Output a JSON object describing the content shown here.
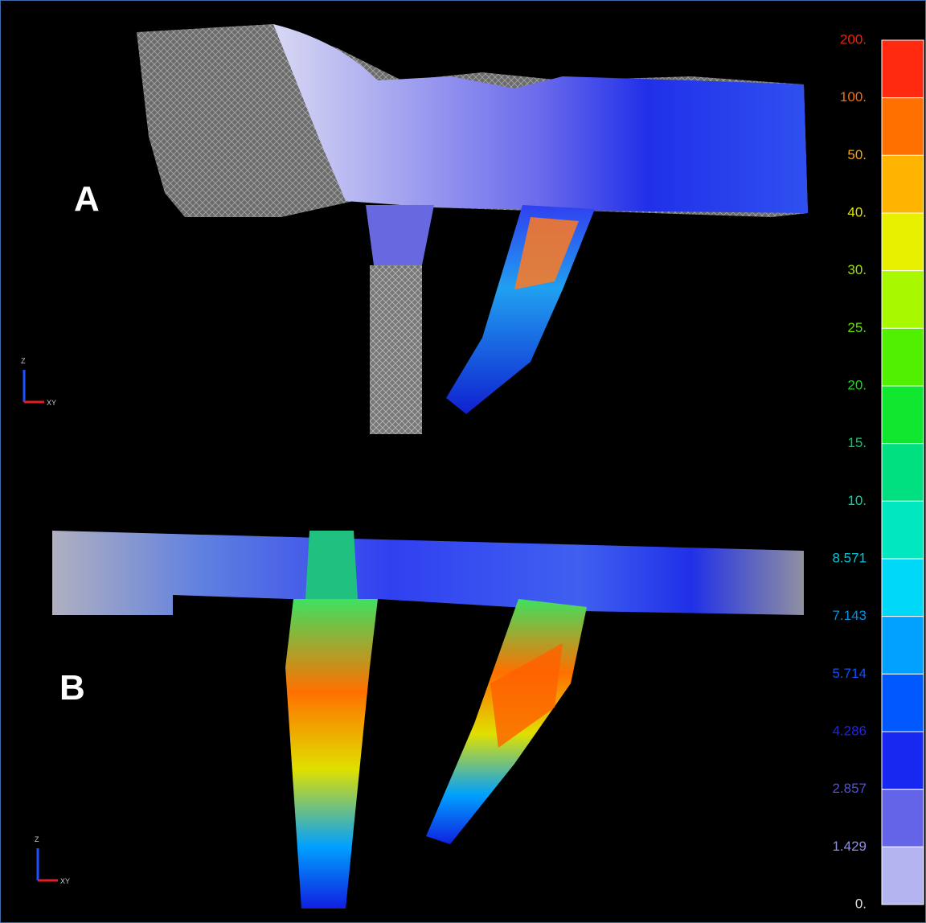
{
  "panels": [
    {
      "label": "A"
    },
    {
      "label": "B"
    }
  ],
  "axes": {
    "z": "Z",
    "xy": "XY"
  },
  "legend": {
    "labels": [
      "200.",
      "100.",
      "50.",
      "40.",
      "30.",
      "25.",
      "20.",
      "15.",
      "10.",
      "8.571",
      "7.143",
      "5.714",
      "4.286",
      "2.857",
      "1.429",
      "0."
    ],
    "label_colors": [
      "#ff1a00",
      "#ff6a00",
      "#ffa500",
      "#e0e000",
      "#a0e000",
      "#60e000",
      "#10e010",
      "#00d060",
      "#00d8a0",
      "#00c8d8",
      "#0090e8",
      "#1050ff",
      "#2020e8",
      "#5050e0",
      "#9090e0",
      "#e0e0e0"
    ],
    "segment_colors": [
      "#ff2a10",
      "#ff7000",
      "#ffb400",
      "#e8f000",
      "#a8f800",
      "#50f000",
      "#10e830",
      "#00e080",
      "#00e8c0",
      "#00d8f8",
      "#00a0ff",
      "#0058ff",
      "#1828f0",
      "#6464e8",
      "#b4b4f0"
    ]
  }
}
